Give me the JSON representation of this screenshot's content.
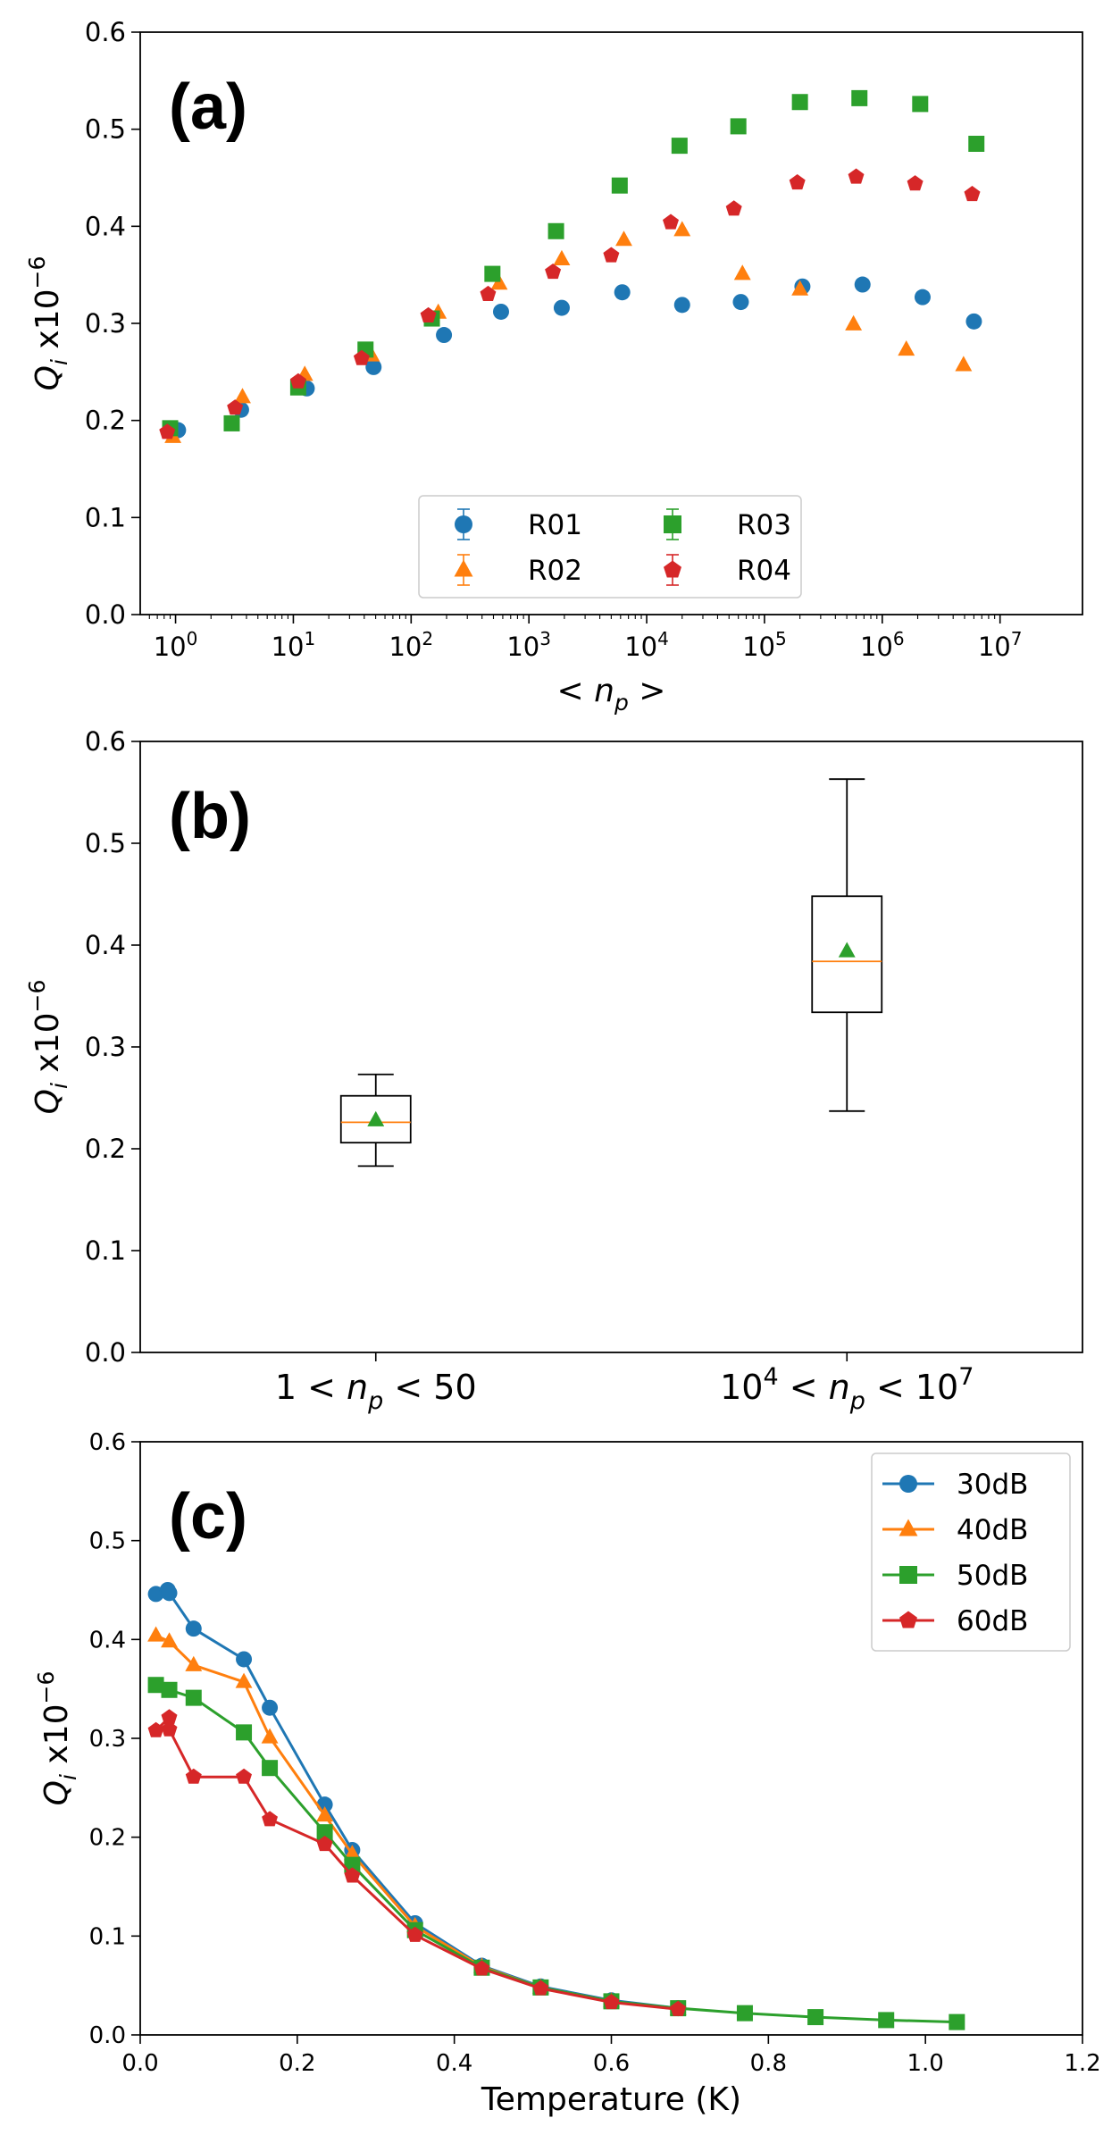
{
  "chart_data": [
    {
      "id": "a",
      "type": "scatter",
      "panel_label": "(a)",
      "ylabel": "Q_i x10^-6",
      "ylim": [
        0,
        0.6
      ],
      "yticks": [
        "0.0",
        "0.1",
        "0.2",
        "0.3",
        "0.4",
        "0.5",
        "0.6"
      ],
      "xscale": "log",
      "xlim_log10": [
        -0.3,
        7.7
      ],
      "xlabel": "< n_p >",
      "xtick_labels": [
        "10^0",
        "10^1",
        "10^2",
        "10^3",
        "10^4",
        "10^5",
        "10^6",
        "10^7"
      ],
      "legend_position": "lower-center",
      "series": [
        {
          "name": "R01",
          "color": "#1f77b4",
          "marker": "circle",
          "x": [
            1.05,
            3.6,
            13,
            48,
            190,
            580,
            1900,
            6200,
            20000,
            63000,
            210000,
            680000,
            2200000,
            6000000
          ],
          "y": [
            0.19,
            0.211,
            0.233,
            0.255,
            0.288,
            0.312,
            0.316,
            0.332,
            0.319,
            0.322,
            0.338,
            0.34,
            0.327,
            0.302
          ]
        },
        {
          "name": "R02",
          "color": "#ff7f0e",
          "marker": "triangle",
          "x": [
            0.95,
            3.7,
            12.5,
            46,
            170,
            560,
            1900,
            6400,
            20000,
            65000,
            200000,
            570000,
            1600000,
            4900000
          ],
          "y": [
            0.183,
            0.224,
            0.247,
            0.267,
            0.311,
            0.341,
            0.366,
            0.386,
            0.396,
            0.351,
            0.335,
            0.299,
            0.273,
            0.257
          ]
        },
        {
          "name": "R03",
          "color": "#2ca02c",
          "marker": "square",
          "x": [
            0.9,
            3.0,
            11,
            41,
            150,
            490,
            1700,
            5900,
            19000,
            60000,
            200000,
            640000,
            2100000,
            6300000
          ],
          "y": [
            0.192,
            0.197,
            0.234,
            0.273,
            0.305,
            0.351,
            0.395,
            0.442,
            0.483,
            0.503,
            0.528,
            0.532,
            0.526,
            0.485
          ]
        },
        {
          "name": "R04",
          "color": "#d62728",
          "marker": "pentagon",
          "x": [
            0.85,
            3.2,
            11,
            38,
            140,
            450,
            1600,
            5000,
            16000,
            55000,
            190000,
            600000,
            1900000,
            5800000
          ],
          "y": [
            0.188,
            0.213,
            0.24,
            0.264,
            0.308,
            0.33,
            0.353,
            0.37,
            0.404,
            0.418,
            0.445,
            0.451,
            0.444,
            0.433
          ]
        }
      ]
    },
    {
      "id": "b",
      "type": "box",
      "panel_label": "(b)",
      "ylabel": "Q_i x10^-6",
      "ylim": [
        0,
        0.6
      ],
      "yticks": [
        "0.0",
        "0.1",
        "0.2",
        "0.3",
        "0.4",
        "0.5",
        "0.6"
      ],
      "categories": [
        "1 < n_p < 50",
        "10^4 < n_p < 10^7"
      ],
      "boxes": [
        {
          "whisker_low": 0.183,
          "q1": 0.206,
          "median": 0.226,
          "q3": 0.252,
          "whisker_high": 0.273,
          "mean": 0.228
        },
        {
          "whisker_low": 0.237,
          "q1": 0.334,
          "median": 0.384,
          "q3": 0.448,
          "whisker_high": 0.563,
          "mean": 0.394
        }
      ],
      "median_color": "#ff7f0e",
      "mean_color": "#2ca02c"
    },
    {
      "id": "c",
      "type": "line",
      "panel_label": "(c)",
      "ylabel": "Q_i x10^-6",
      "ylim": [
        0,
        0.6
      ],
      "yticks": [
        "0.0",
        "0.1",
        "0.2",
        "0.3",
        "0.4",
        "0.5",
        "0.6"
      ],
      "xlim": [
        0,
        1.2
      ],
      "xticks": [
        "0.0",
        "0.2",
        "0.4",
        "0.6",
        "0.8",
        "1.0",
        "1.2"
      ],
      "xlabel": "Temperature (K)",
      "legend_position": "top-right",
      "series": [
        {
          "name": "30dB",
          "color": "#1f77b4",
          "marker": "circle",
          "x": [
            0.02,
            0.035,
            0.037,
            0.068,
            0.132,
            0.165,
            0.235,
            0.27,
            0.35,
            0.435,
            0.51,
            0.6,
            0.685
          ],
          "y": [
            0.446,
            0.45,
            0.447,
            0.411,
            0.38,
            0.331,
            0.233,
            0.187,
            0.113,
            0.07,
            0.049,
            0.035,
            0.027
          ]
        },
        {
          "name": "40dB",
          "color": "#ff7f0e",
          "marker": "triangle",
          "x": [
            0.02,
            0.037,
            0.068,
            0.132,
            0.165,
            0.235,
            0.27,
            0.35,
            0.435,
            0.51,
            0.6,
            0.685
          ],
          "y": [
            0.404,
            0.398,
            0.374,
            0.357,
            0.301,
            0.222,
            0.183,
            0.11,
            0.069,
            0.048,
            0.034,
            0.026
          ]
        },
        {
          "name": "50dB",
          "color": "#2ca02c",
          "marker": "square",
          "x": [
            0.02,
            0.037,
            0.068,
            0.132,
            0.165,
            0.235,
            0.27,
            0.35,
            0.435,
            0.51,
            0.6,
            0.685,
            0.77,
            0.86,
            0.95,
            1.04
          ],
          "y": [
            0.354,
            0.349,
            0.341,
            0.306,
            0.27,
            0.205,
            0.172,
            0.106,
            0.068,
            0.048,
            0.034,
            0.027,
            0.022,
            0.018,
            0.015,
            0.013
          ]
        },
        {
          "name": "60dB",
          "color": "#d62728",
          "marker": "pentagon",
          "x": [
            0.02,
            0.037,
            0.037,
            0.068,
            0.132,
            0.165,
            0.235,
            0.27,
            0.35,
            0.435,
            0.51,
            0.6,
            0.685
          ],
          "y": [
            0.308,
            0.321,
            0.309,
            0.261,
            0.261,
            0.218,
            0.193,
            0.161,
            0.101,
            0.067,
            0.047,
            0.033,
            0.026
          ]
        }
      ]
    }
  ]
}
